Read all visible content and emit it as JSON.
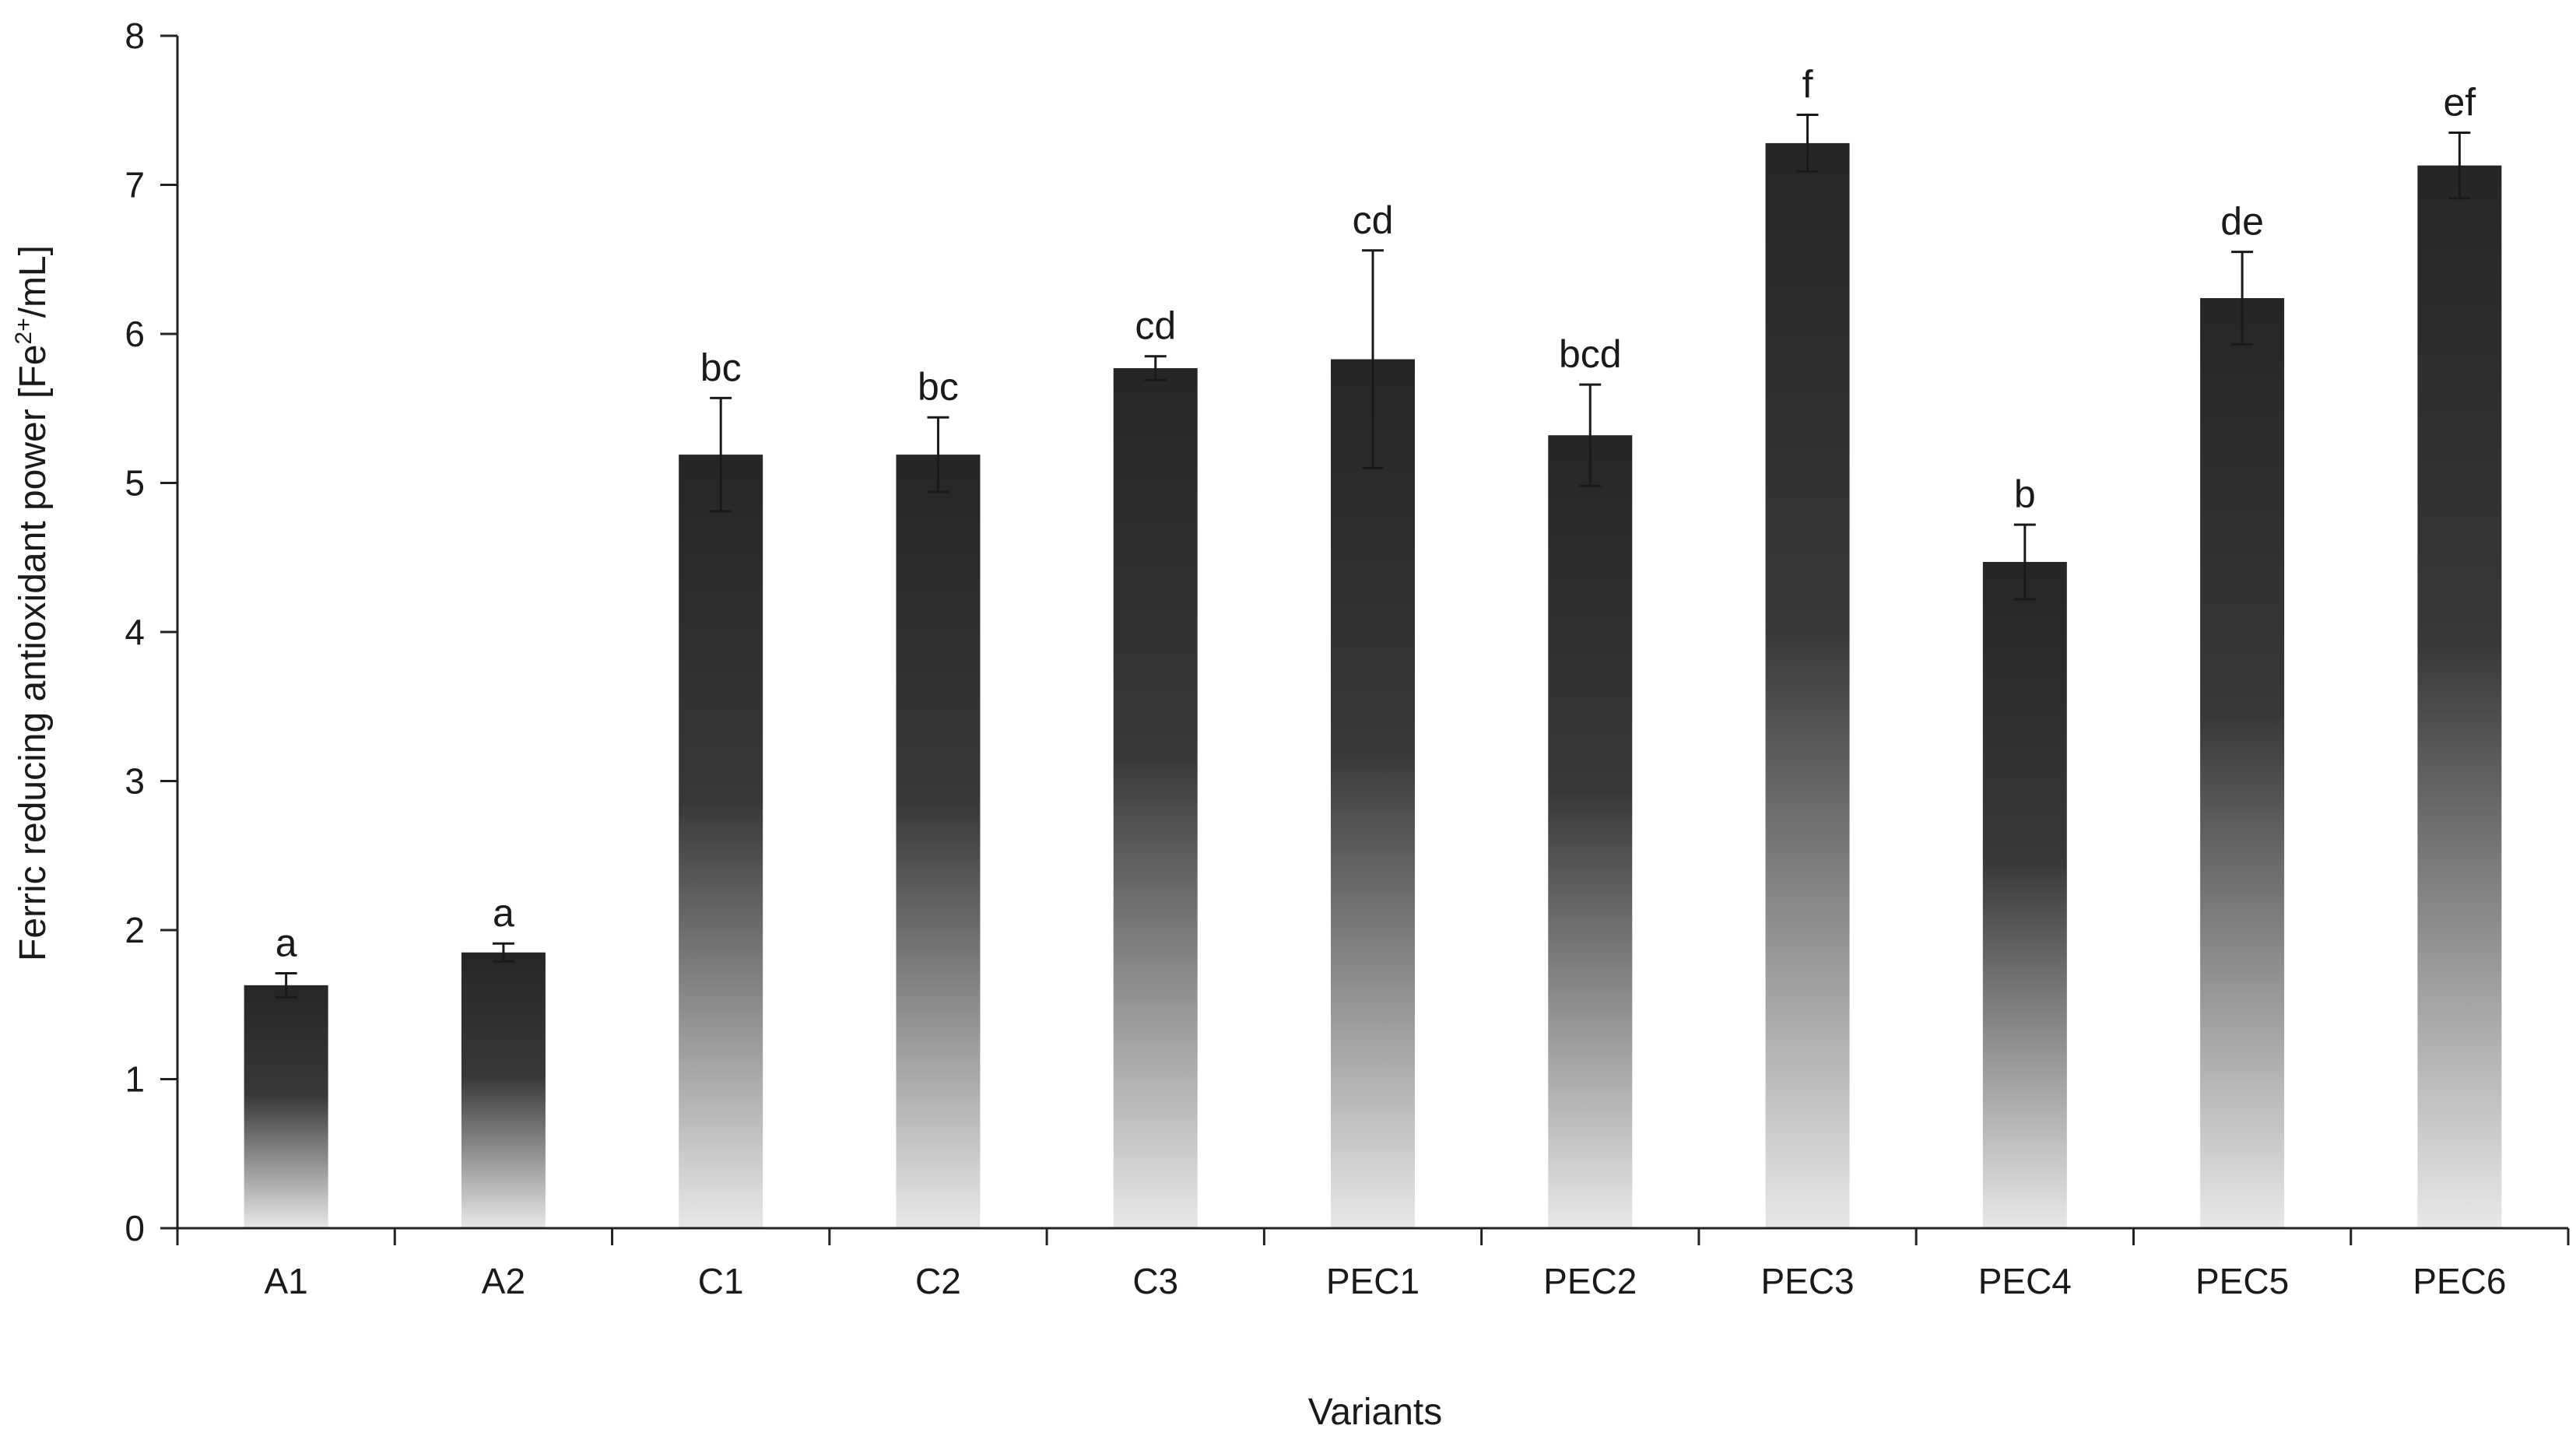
{
  "chart_data": {
    "type": "bar",
    "title": "",
    "xlabel": "Variants",
    "ylabel": "Ferric reducing antioxidant power [Fe",
    "ylabel_superscript": "2+",
    "ylabel_suffix": "/mL]",
    "ylim": [
      0,
      8
    ],
    "yticks": [
      "0",
      "1",
      "2",
      "3",
      "4",
      "5",
      "6",
      "7",
      "8"
    ],
    "categories": [
      "A1",
      "A2",
      "C1",
      "C2",
      "C3",
      "PEC1",
      "PEC2",
      "PEC3",
      "PEC4",
      "PEC5",
      "PEC6"
    ],
    "values": [
      1.63,
      1.85,
      5.19,
      5.19,
      5.77,
      5.83,
      5.32,
      7.28,
      4.47,
      6.24,
      7.13
    ],
    "errors": [
      0.08,
      0.06,
      0.38,
      0.25,
      0.08,
      0.73,
      0.34,
      0.19,
      0.25,
      0.31,
      0.22
    ],
    "significance_labels": [
      "a",
      "a",
      "bc",
      "bc",
      "cd",
      "cd",
      "bcd",
      "f",
      "b",
      "de",
      "ef"
    ],
    "grid": false,
    "legend": "none",
    "bar_gradient": {
      "top": "#262626",
      "bottom": "#e8e8e8"
    }
  }
}
